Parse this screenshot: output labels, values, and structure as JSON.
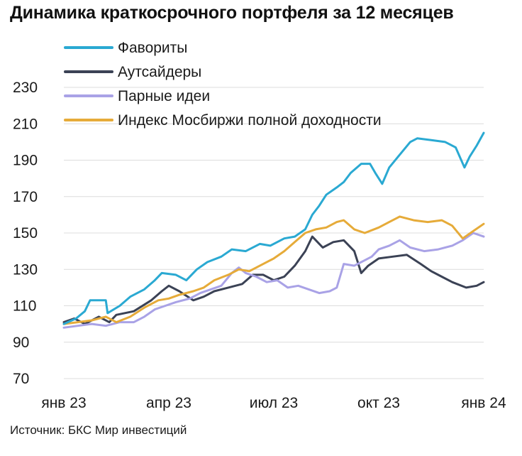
{
  "title": "Динамика краткосрочного портфеля за 12 месяцев",
  "source": "Источник: БКС Мир инвестиций",
  "chart_data": {
    "type": "line",
    "title": "Динамика краткосрочного портфеля за 12 месяцев",
    "xlabel": "",
    "ylabel": "",
    "ylim": [
      70,
      230
    ],
    "yticks": [
      70,
      90,
      110,
      130,
      150,
      170,
      190,
      210,
      230
    ],
    "xlim": [
      0,
      12
    ],
    "xticks": [
      {
        "x": 0,
        "label": "янв 23"
      },
      {
        "x": 3,
        "label": "апр 23"
      },
      {
        "x": 6,
        "label": "июл 23"
      },
      {
        "x": 9,
        "label": "окт 23"
      },
      {
        "x": 12,
        "label": "янв 24"
      }
    ],
    "grid": true,
    "legend_position": "top-left",
    "series": [
      {
        "name": "Фавориты",
        "color": "#2aa9d2",
        "points": [
          [
            0,
            100
          ],
          [
            0.35,
            103
          ],
          [
            0.6,
            107
          ],
          [
            0.75,
            113
          ],
          [
            1.2,
            113
          ],
          [
            1.25,
            106
          ],
          [
            1.6,
            110
          ],
          [
            1.9,
            115
          ],
          [
            2.3,
            119
          ],
          [
            2.6,
            124
          ],
          [
            2.8,
            128
          ],
          [
            3.2,
            127
          ],
          [
            3.5,
            124
          ],
          [
            3.8,
            130
          ],
          [
            4.1,
            134
          ],
          [
            4.5,
            137
          ],
          [
            4.8,
            141
          ],
          [
            5.2,
            140
          ],
          [
            5.6,
            144
          ],
          [
            5.9,
            143
          ],
          [
            6.3,
            147
          ],
          [
            6.6,
            148
          ],
          [
            6.9,
            152
          ],
          [
            7.1,
            160
          ],
          [
            7.3,
            165
          ],
          [
            7.5,
            171
          ],
          [
            7.8,
            175
          ],
          [
            8.0,
            178
          ],
          [
            8.2,
            183
          ],
          [
            8.5,
            188
          ],
          [
            8.75,
            188
          ],
          [
            8.9,
            183
          ],
          [
            9.1,
            177
          ],
          [
            9.3,
            186
          ],
          [
            9.6,
            193
          ],
          [
            9.9,
            200
          ],
          [
            10.1,
            202
          ],
          [
            10.5,
            201
          ],
          [
            10.9,
            200
          ],
          [
            11.2,
            197
          ],
          [
            11.45,
            186
          ],
          [
            11.6,
            192
          ],
          [
            11.8,
            198
          ],
          [
            12.0,
            205
          ]
        ]
      },
      {
        "name": "Аутсайдеры",
        "color": "#3b4255",
        "points": [
          [
            0,
            101
          ],
          [
            0.3,
            103
          ],
          [
            0.6,
            100
          ],
          [
            1.0,
            104
          ],
          [
            1.3,
            101
          ],
          [
            1.5,
            105
          ],
          [
            2.0,
            107
          ],
          [
            2.5,
            113
          ],
          [
            2.8,
            118
          ],
          [
            3.0,
            121
          ],
          [
            3.3,
            118
          ],
          [
            3.7,
            113
          ],
          [
            4.0,
            115
          ],
          [
            4.3,
            118
          ],
          [
            4.7,
            120
          ],
          [
            5.1,
            122
          ],
          [
            5.4,
            127
          ],
          [
            5.7,
            127
          ],
          [
            6.0,
            124
          ],
          [
            6.3,
            126
          ],
          [
            6.6,
            132
          ],
          [
            6.9,
            140
          ],
          [
            7.1,
            148
          ],
          [
            7.4,
            142
          ],
          [
            7.7,
            145
          ],
          [
            8.0,
            146
          ],
          [
            8.3,
            140
          ],
          [
            8.5,
            128
          ],
          [
            8.7,
            132
          ],
          [
            9.0,
            136
          ],
          [
            9.4,
            137
          ],
          [
            9.8,
            138
          ],
          [
            10.2,
            133
          ],
          [
            10.5,
            129
          ],
          [
            10.8,
            126
          ],
          [
            11.1,
            123
          ],
          [
            11.5,
            120
          ],
          [
            11.8,
            121
          ],
          [
            12.0,
            123
          ]
        ]
      },
      {
        "name": "Парные идеи",
        "color": "#a9a2e6",
        "points": [
          [
            0,
            98
          ],
          [
            0.4,
            99
          ],
          [
            0.8,
            100
          ],
          [
            1.2,
            99
          ],
          [
            1.6,
            101
          ],
          [
            2.0,
            101
          ],
          [
            2.3,
            104
          ],
          [
            2.6,
            108
          ],
          [
            2.9,
            110
          ],
          [
            3.2,
            112
          ],
          [
            3.6,
            114
          ],
          [
            3.9,
            117
          ],
          [
            4.2,
            119
          ],
          [
            4.5,
            121
          ],
          [
            4.8,
            128
          ],
          [
            5.0,
            131
          ],
          [
            5.2,
            128
          ],
          [
            5.5,
            126
          ],
          [
            5.8,
            123
          ],
          [
            6.1,
            124
          ],
          [
            6.4,
            120
          ],
          [
            6.7,
            121
          ],
          [
            7.0,
            119
          ],
          [
            7.3,
            117
          ],
          [
            7.6,
            118
          ],
          [
            7.8,
            120
          ],
          [
            8.0,
            133
          ],
          [
            8.3,
            132
          ],
          [
            8.6,
            135
          ],
          [
            8.8,
            137
          ],
          [
            9.0,
            141
          ],
          [
            9.3,
            143
          ],
          [
            9.6,
            146
          ],
          [
            9.9,
            142
          ],
          [
            10.3,
            140
          ],
          [
            10.7,
            141
          ],
          [
            11.1,
            143
          ],
          [
            11.4,
            146
          ],
          [
            11.7,
            150
          ],
          [
            12.0,
            148
          ]
        ]
      },
      {
        "name": "Индекс Мосбиржи полной доходности",
        "color": "#e6ab39",
        "points": [
          [
            0,
            100
          ],
          [
            0.4,
            101
          ],
          [
            0.8,
            102
          ],
          [
            1.2,
            104
          ],
          [
            1.5,
            101
          ],
          [
            1.9,
            104
          ],
          [
            2.3,
            109
          ],
          [
            2.7,
            113
          ],
          [
            3.0,
            114
          ],
          [
            3.3,
            116
          ],
          [
            3.7,
            118
          ],
          [
            4.0,
            120
          ],
          [
            4.3,
            124
          ],
          [
            4.7,
            127
          ],
          [
            5.0,
            130
          ],
          [
            5.3,
            129
          ],
          [
            5.7,
            133
          ],
          [
            6.0,
            136
          ],
          [
            6.3,
            140
          ],
          [
            6.6,
            145
          ],
          [
            6.9,
            150
          ],
          [
            7.2,
            152
          ],
          [
            7.5,
            153
          ],
          [
            7.8,
            156
          ],
          [
            8.0,
            157
          ],
          [
            8.3,
            152
          ],
          [
            8.6,
            150
          ],
          [
            9.0,
            153
          ],
          [
            9.3,
            156
          ],
          [
            9.6,
            159
          ],
          [
            10.0,
            157
          ],
          [
            10.4,
            156
          ],
          [
            10.8,
            157
          ],
          [
            11.1,
            154
          ],
          [
            11.4,
            147
          ],
          [
            11.7,
            151
          ],
          [
            12.0,
            155
          ]
        ]
      }
    ]
  }
}
